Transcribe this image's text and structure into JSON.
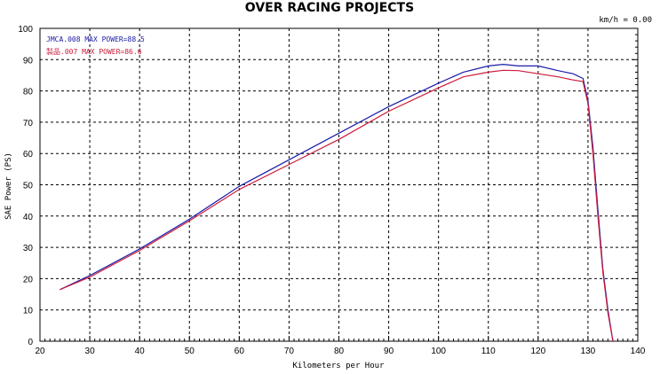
{
  "chart_data": {
    "type": "line",
    "title": "OVER RACING PROJECTS",
    "readout": "km/h = 0.00",
    "xlabel": "Kilometers per Hour",
    "ylabel": "SAE Power (PS)",
    "xlim": [
      20,
      140
    ],
    "ylim": [
      0,
      100
    ],
    "xticks": [
      20,
      30,
      40,
      50,
      60,
      70,
      80,
      90,
      100,
      110,
      120,
      130,
      140
    ],
    "yticks": [
      0,
      10,
      20,
      30,
      40,
      50,
      60,
      70,
      80,
      90,
      100
    ],
    "grid": true,
    "legend_position": "top-left",
    "series": [
      {
        "name": "JMCA.008  MAX POWER=88.5",
        "color": "#1a1aa8",
        "x": [
          24,
          30,
          40,
          50,
          60,
          70,
          80,
          90,
          100,
          105,
          110,
          113,
          116,
          120,
          124,
          127,
          129,
          130,
          131,
          132,
          133,
          134,
          135
        ],
        "y": [
          16.5,
          21,
          29.5,
          39,
          49.5,
          58,
          66.5,
          75,
          82.5,
          86,
          88,
          88.5,
          88,
          88,
          86.5,
          85.5,
          84,
          77,
          62,
          42,
          23,
          10,
          0
        ]
      },
      {
        "name": "製品.007  MAX POWER=86.6",
        "color": "#cc1a3a",
        "x": [
          24,
          30,
          40,
          50,
          60,
          70,
          80,
          90,
          100,
          105,
          110,
          113,
          116,
          120,
          124,
          127,
          129,
          130,
          131,
          132,
          133,
          134,
          135
        ],
        "y": [
          16.5,
          20.5,
          29,
          38.5,
          48.5,
          56.5,
          64.5,
          73.5,
          81,
          84.5,
          86,
          86.6,
          86.5,
          85.5,
          84.5,
          83.5,
          83,
          76,
          60,
          40,
          22,
          9,
          0
        ]
      }
    ]
  }
}
